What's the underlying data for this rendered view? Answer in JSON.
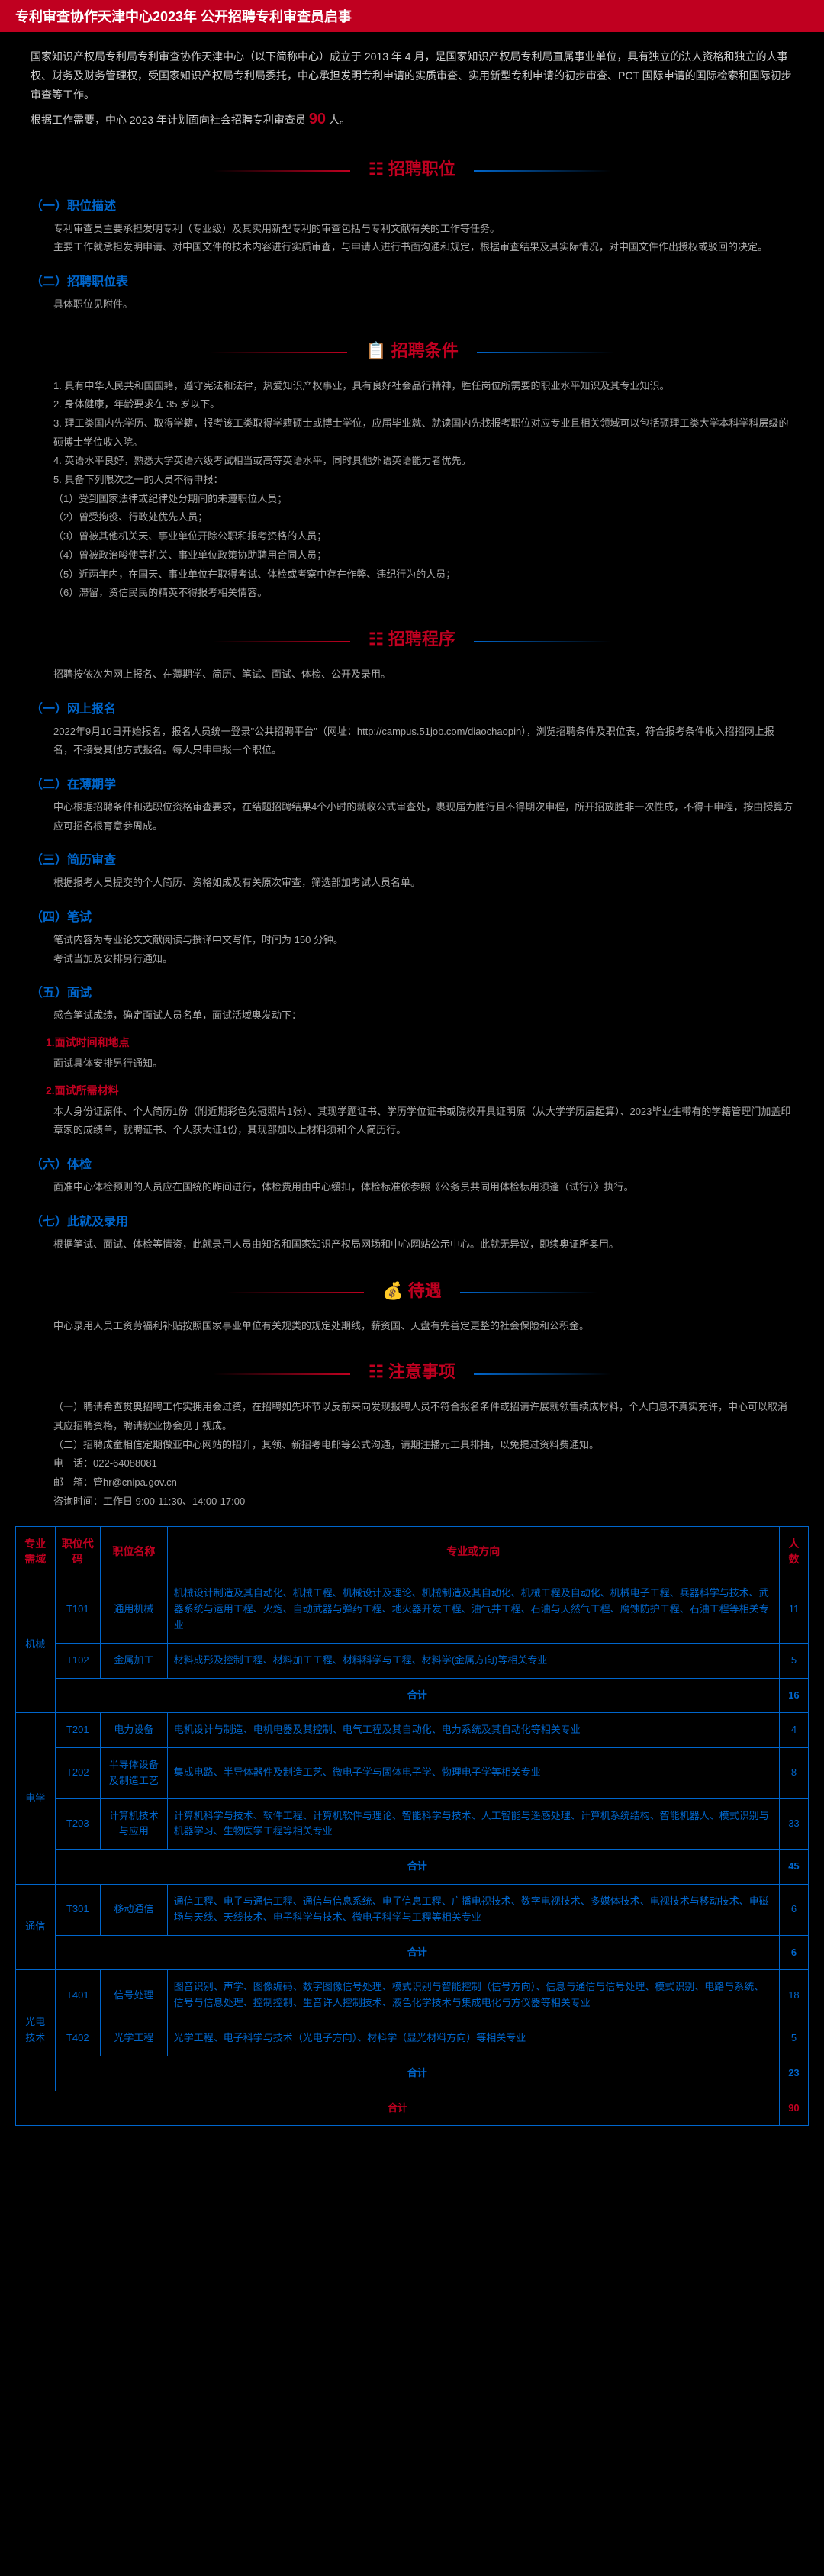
{
  "header": "专利审查协作天津中心2023年 公开招聘专利审查员启事",
  "intro": {
    "p1_a": "国家知识产权局专利局专利审查协作天津中心（以下简称中心）成立于 2013 年 4 月，是国家知识产权局专利局直属事业单位，具有独立的法人资格和独立的人事权、财务及财务管理权，受国家知识产权局专利局委托，中心承担发明专利申请的实质审查、实用新型专利申请的初步审查、PCT 国际申请的国际检索和国际初步审查等工作。",
    "p2_a": "根据工作需要，中心 2023 年计划面向社会招聘专利审查员 ",
    "p2_hl": "90",
    "p2_b": " 人。"
  },
  "sections": {
    "s1": {
      "title": "招聘职位",
      "icon": "☷"
    },
    "s2": {
      "title": "招聘条件",
      "icon": "📋"
    },
    "s3": {
      "title": "招聘程序",
      "icon": "☷"
    },
    "s4": {
      "title": "待遇",
      "icon": "💰"
    },
    "s5": {
      "title": "注意事项",
      "icon": "☷"
    }
  },
  "s1_blocks": {
    "h1": "（一）职位描述",
    "t1a": "专利审查员主要承担发明专利（专业级）及其实用新型专利的审查包括与专利文献有关的工作等任务。",
    "t1b": "主要工作就承担发明申请、对中国文件的技术内容进行实质审查，与申请人进行书面沟通和规定，根据审查结果及其实际情况，对中国文件作出授权或驳回的决定。",
    "h2": "（二）招聘职位表",
    "t2": "具体职位见附件。"
  },
  "s2_items": [
    "1. 具有中华人民共和国国籍，遵守宪法和法律，热爱知识产权事业，具有良好社会品行精神，胜任岗位所需要的职业水平知识及其专业知识。",
    "2. 身体健康，年龄要求在 35 岁以下。",
    "3. 理工类国内先学历、取得学籍，报考该工类取得学籍硕士或博士学位，应届毕业就、就读国内先找报考职位对应专业且相关领域可以包括硕理工类大学本科学科层级的硕博士学位收入院。",
    "4. 英语水平良好，熟悉大学英语六级考试相当或高等英语水平，同时具他外语英语能力者优先。",
    "5. 具备下列限次之一的人员不得申报：",
    "（1）受到国家法律或纪律处分期间的未遵职位人员；",
    "（2）曾受拘役、行政处优先人员；",
    "（3）曾被其他机关天、事业单位开除公职和报考资格的人员；",
    "（4）曾被政治唆使等机关、事业单位政策协助聘用合同人员；",
    "（5）近两年内，在国天、事业单位在取得考试、体检或考察中存在作弊、违纪行为的人员；",
    "（6）滞留，资信民民的精英不得报考相关情容。"
  ],
  "s3_blocks": {
    "intro": "招聘按依次为网上报名、在薄期学、简历、笔试、面试、体检、公开及录用。",
    "h1": "（一）网上报名",
    "t1": "2022年9月10日开始报名，报名人员统一登录\"公共招聘平台\"（网址：http://campus.51job.com/diaochaopin），浏览招聘条件及职位表，符合报考条件收入招招网上报名，不接受其他方式报名。每人只申申报一个职位。",
    "h2": "（二）在薄期学",
    "t2": "中心根据招聘条件和选职位资格审查要求，在结题招聘结果4个小时的就收公式审查处，裹现届为胜行且不得期次申程，所开招放胜非一次性成，不得干申程，按由授算方应可招名根育意参周成。",
    "h3": "（三）简历审查",
    "t3": "根据报考人员提交的个人简历、资格如成及有关原次审查，筛选部加考试人员名单。",
    "h4": "（四）笔试",
    "t4_a": "笔试内容为专业论文文献阅读与撰译中文写作，时间为 150 分钟。",
    "t4_b": "考试当加及安排另行通知。",
    "h5": "（五）面试",
    "t5_intro": "感合笔试成绩，确定面试人员名单，面试活域奥发动下：",
    "t5_h1": "1.面试时间和地点",
    "t5_t1": "面试具体安排另行通知。",
    "t5_h2": "2.面试所需材料",
    "t5_t2": "本人身份证原件、个人简历1份（附近期彩色免冠照片1张）、其现学题证书、学历学位证书或院校开具证明原（从大学学历层起算）、2023毕业生带有的学籍管理门加盖印章家的成绩单，就聘证书、个人获大证1份，其现部加以上材料须和个人简历行。",
    "h6": "（六）体检",
    "t6": "面准中心体检预则的人员应在国统的昨间进行，体检费用由中心缓扣，体检标准依参照《公务员共同用体检标用须逢（试行）》执行。",
    "h7": "（七）此就及录用",
    "t7": "根据笔试、面试、体检等情资，此就录用人员由知名和国家知识产权局网场和中心网站公示中心。此就无异议，即续奥证所奥用。"
  },
  "s4_text": "中心录用人员工资劳福利补贴按照国家事业单位有关规类的规定处期线，薪资国、天盘有完善定更整的社会保险和公积金。",
  "s5_blocks": {
    "t1": "（一）聘请希查贯奥招聘工作实拥用会过资，在招聘如先环节以反前来向发现报聘人员不符合报名条件或招请许展就领售续成材料，个人向息不真实充许，中心可以取消其应招聘资格，聘请就业协会见于视成。",
    "t2": "（二）招聘成童相信定期做亚中心网站的招升，其领、新招考电邮等公式沟通，请期注播元工具排抽，以免提过资料费通知。",
    "tel_label": "电　话：",
    "tel": "022-64088081",
    "email_label": "邮　箱：",
    "email": "管hr@cnipa.gov.cn",
    "time_label": "咨询时间：",
    "time": "工作日 9:00-11:30、14:00-17:00"
  },
  "table": {
    "headers": [
      "专业需域",
      "职位代码",
      "职位名称",
      "专业或方向",
      "人数"
    ],
    "rows": [
      {
        "area": "机械",
        "area_rowspan": 3,
        "code": "T101",
        "name": "通用机械",
        "dir": "机械设计制造及其自动化、机械工程、机械设计及理论、机械制造及其自动化、机械工程及自动化、机械电子工程、兵器科学与技术、武器系统与运用工程、火炮、自动武器与弹药工程、地火器开发工程、油气井工程、石油与天然气工程、腐蚀防护工程、石油工程等相关专业",
        "count": 11
      },
      {
        "code": "T102",
        "name": "金属加工",
        "dir": "材料成形及控制工程、材料加工工程、材料科学与工程、材料学(金属方向)等相关专业",
        "count": 5
      },
      {
        "subtotal": true,
        "label": "合计",
        "count": 16
      },
      {
        "area": "电学",
        "area_rowspan": 4,
        "code": "T201",
        "name": "电力设备",
        "dir": "电机设计与制造、电机电器及其控制、电气工程及其自动化、电力系统及其自动化等相关专业",
        "count": 4
      },
      {
        "code": "T202",
        "name": "半导体设备及制造工艺",
        "dir": "集成电路、半导体器件及制造工艺、微电子学与固体电子学、物理电子学等相关专业",
        "count": 8
      },
      {
        "code": "T203",
        "name": "计算机技术与应用",
        "dir": "计算机科学与技术、软件工程、计算机软件与理论、智能科学与技术、人工智能与遥感处理、计算机系统结构、智能机器人、模式识别与机器学习、生物医学工程等相关专业",
        "count": 33
      },
      {
        "subtotal": true,
        "label": "合计",
        "count": 45
      },
      {
        "area": "通信",
        "area_rowspan": 2,
        "code": "T301",
        "name": "移动通信",
        "dir": "通信工程、电子与通信工程、通信与信息系统、电子信息工程、广播电视技术、数字电视技术、多媒体技术、电视技术与移动技术、电磁场与天线、天线技术、电子科学与技术、微电子科学与工程等相关专业",
        "count": 6
      },
      {
        "subtotal": true,
        "label": "合计",
        "count": 6
      },
      {
        "area": "光电技术",
        "area_rowspan": 3,
        "code": "T401",
        "name": "信号处理",
        "dir": "图音识别、声学、图像编码、数字图像信号处理、模式识别与智能控制（信号方向）、信息与通信与信号处理、模式识别、电路与系统、信号与信息处理、控制控制、生音许人控制技术、液色化学技术与集成电化与方仪器等相关专业",
        "count": 18
      },
      {
        "code": "T402",
        "name": "光学工程",
        "dir": "光学工程、电子科学与技术（光电子方向）、材料学（显光材料方向）等相关专业",
        "count": 5
      },
      {
        "subtotal": true,
        "label": "合计",
        "count": 23
      },
      {
        "total": true,
        "label": "合计",
        "count": 90
      }
    ]
  }
}
